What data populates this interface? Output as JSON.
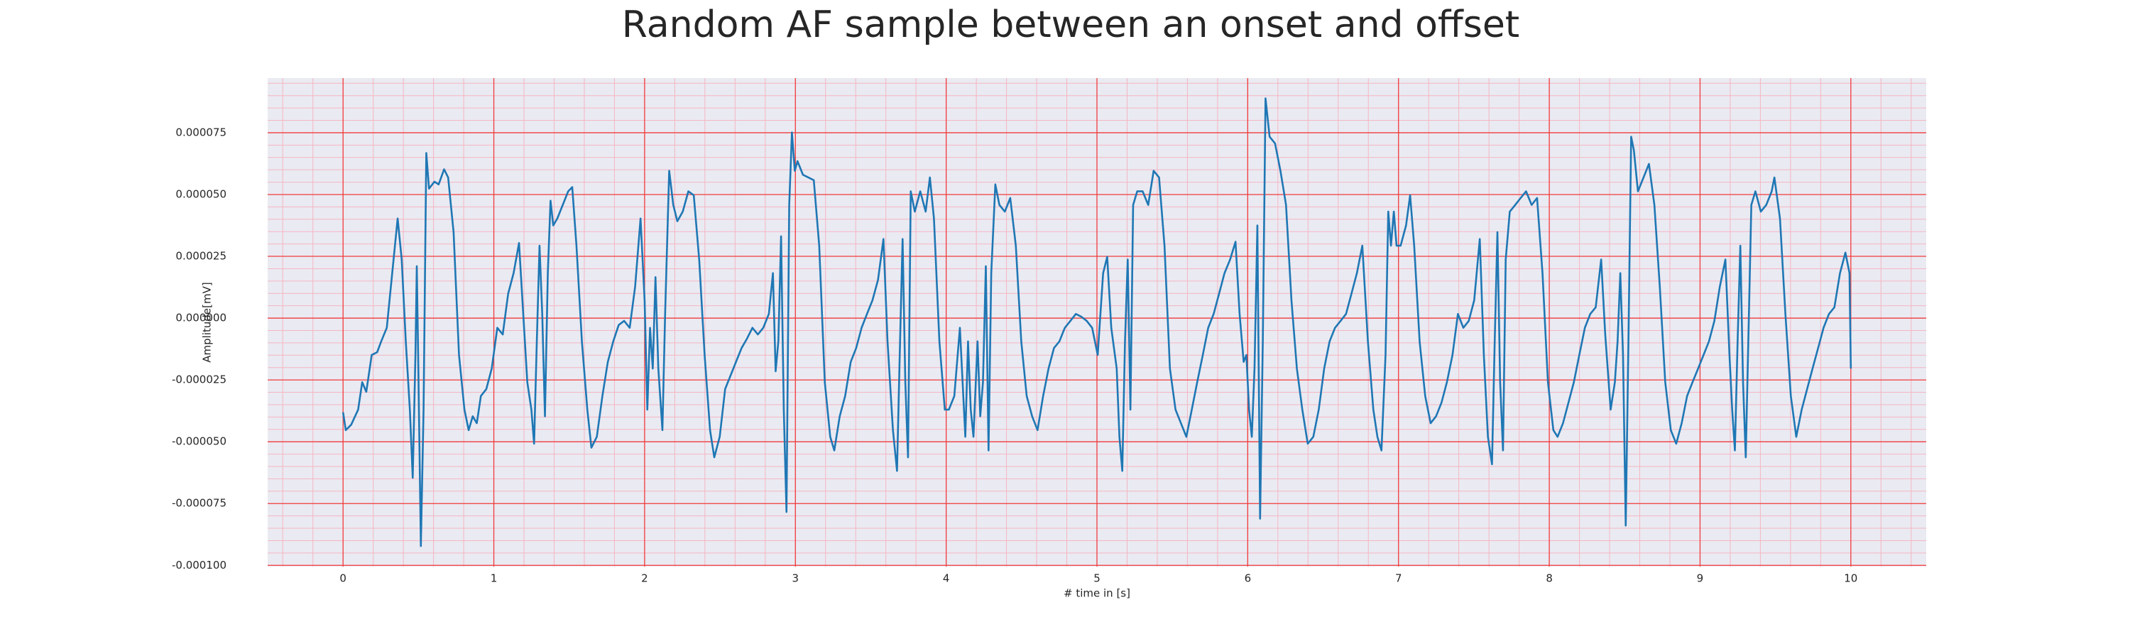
{
  "chart_data": {
    "type": "line",
    "title": "Random AF sample between an onset and offset",
    "xlabel": "# time in [s]",
    "ylabel": "Amplitude[mV]",
    "color": "#1f77b4",
    "grid": true,
    "minor_grid": true,
    "xlim": [
      -0.5,
      10.5
    ],
    "xticks": [
      0,
      1,
      2,
      3,
      4,
      5,
      6,
      7,
      8,
      9,
      10
    ],
    "ylim": [
      -0.0001005,
      9.71e-05
    ],
    "yticks": [
      {
        "value": -0.0001,
        "label": "-0.000100"
      },
      {
        "value": -7.5e-05,
        "label": "-0.000075"
      },
      {
        "value": -5e-05,
        "label": "-0.000050"
      },
      {
        "value": -2.5e-05,
        "label": "-0.000025"
      },
      {
        "value": 0,
        "label": "0.000000"
      },
      {
        "value": 2.5e-05,
        "label": "0.000025"
      },
      {
        "value": 5e-05,
        "label": "0.000050"
      },
      {
        "value": 7.5e-05,
        "label": "0.000075"
      }
    ],
    "x": [
      0,
      0.018,
      0.054,
      0.1,
      0.127,
      0.154,
      0.19,
      0.226,
      0.253,
      0.29,
      0.326,
      0.362,
      0.389,
      0.416,
      0.443,
      0.462,
      0.48,
      0.489,
      0.498,
      0.516,
      0.534,
      0.552,
      0.57,
      0.606,
      0.634,
      0.67,
      0.697,
      0.733,
      0.769,
      0.805,
      0.833,
      0.86,
      0.887,
      0.914,
      0.95,
      0.986,
      1.023,
      1.059,
      1.095,
      1.131,
      1.167,
      1.195,
      1.222,
      1.249,
      1.267,
      1.285,
      1.303,
      1.321,
      1.339,
      1.358,
      1.376,
      1.394,
      1.421,
      1.457,
      1.493,
      1.52,
      1.548,
      1.584,
      1.62,
      1.647,
      1.683,
      1.72,
      1.756,
      1.792,
      1.828,
      1.864,
      1.901,
      1.937,
      1.973,
      2.0,
      2.018,
      2.036,
      2.054,
      2.072,
      2.091,
      2.118,
      2.136,
      2.163,
      2.19,
      2.217,
      2.253,
      2.29,
      2.326,
      2.362,
      2.398,
      2.434,
      2.462,
      2.498,
      2.534,
      2.57,
      2.606,
      2.643,
      2.679,
      2.715,
      2.751,
      2.787,
      2.824,
      2.851,
      2.869,
      2.887,
      2.905,
      2.923,
      2.941,
      2.959,
      2.977,
      2.996,
      3.014,
      3.05,
      3.086,
      3.122,
      3.158,
      3.195,
      3.231,
      3.258,
      3.294,
      3.33,
      3.367,
      3.403,
      3.439,
      3.475,
      3.511,
      3.548,
      3.584,
      3.611,
      3.647,
      3.674,
      3.692,
      3.711,
      3.729,
      3.747,
      3.765,
      3.792,
      3.828,
      3.864,
      3.892,
      3.919,
      3.955,
      3.991,
      4.018,
      4.054,
      4.091,
      4.109,
      4.127,
      4.145,
      4.163,
      4.181,
      4.208,
      4.226,
      4.244,
      4.263,
      4.281,
      4.299,
      4.326,
      4.353,
      4.389,
      4.425,
      4.462,
      4.498,
      4.534,
      4.57,
      4.606,
      4.643,
      4.679,
      4.715,
      4.751,
      4.787,
      4.824,
      4.86,
      4.896,
      4.932,
      4.968,
      5.005,
      5.041,
      5.068,
      5.095,
      5.131,
      5.149,
      5.168,
      5.186,
      5.204,
      5.222,
      5.24,
      5.267,
      5.303,
      5.34,
      5.376,
      5.412,
      5.448,
      5.484,
      5.521,
      5.557,
      5.593,
      5.629,
      5.665,
      5.702,
      5.738,
      5.774,
      5.81,
      5.846,
      5.883,
      5.919,
      5.946,
      5.973,
      5.991,
      6.009,
      6.027,
      6.045,
      6.064,
      6.082,
      6.1,
      6.118,
      6.145,
      6.181,
      6.217,
      6.254,
      6.29,
      6.326,
      6.362,
      6.398,
      6.435,
      6.471,
      6.507,
      6.543,
      6.579,
      6.616,
      6.652,
      6.688,
      6.724,
      6.76,
      6.797,
      6.833,
      6.86,
      6.887,
      6.914,
      6.932,
      6.95,
      6.969,
      6.987,
      7.014,
      7.05,
      7.077,
      7.104,
      7.14,
      7.177,
      7.213,
      7.249,
      7.285,
      7.321,
      7.358,
      7.394,
      7.43,
      7.466,
      7.502,
      7.539,
      7.566,
      7.593,
      7.62,
      7.638,
      7.656,
      7.674,
      7.693,
      7.711,
      7.738,
      7.774,
      7.81,
      7.846,
      7.883,
      7.919,
      7.955,
      7.991,
      8.027,
      8.055,
      8.091,
      8.127,
      8.163,
      8.199,
      8.236,
      8.272,
      8.308,
      8.344,
      8.371,
      8.407,
      8.435,
      8.453,
      8.471,
      8.489,
      8.507,
      8.525,
      8.543,
      8.561,
      8.588,
      8.625,
      8.661,
      8.697,
      8.733,
      8.769,
      8.806,
      8.842,
      8.878,
      8.914,
      8.95,
      8.987,
      9.023,
      9.059,
      9.095,
      9.131,
      9.168,
      9.195,
      9.213,
      9.231,
      9.249,
      9.267,
      9.285,
      9.303,
      9.322,
      9.34,
      9.367,
      9.403,
      9.439,
      9.475,
      9.493,
      9.53,
      9.566,
      9.602,
      9.638,
      9.674,
      9.71,
      9.746,
      9.783,
      9.819,
      9.855,
      9.891,
      9.928,
      9.964,
      9.991,
      10.0
    ],
    "values": [
      -3.81e-05,
      -4.53e-05,
      -4.31e-05,
      -3.7e-05,
      -2.59e-05,
      -2.98e-05,
      -1.49e-05,
      -1.38e-05,
      -9.4e-06,
      -3.9e-06,
      1.82e-05,
      4.03e-05,
      2.37e-05,
      -9.4e-06,
      -3.7e-05,
      -6.46e-05,
      -1.49e-05,
      2.1e-05,
      -1.49e-05,
      -9.22e-05,
      -3.7e-05,
      6.68e-05,
      5.24e-05,
      5.52e-05,
      5.41e-05,
      6.02e-05,
      5.69e-05,
      3.48e-05,
      -1.49e-05,
      -3.7e-05,
      -4.53e-05,
      -3.97e-05,
      -4.25e-05,
      -3.15e-05,
      -2.87e-05,
      -2.04e-05,
      -3.9e-06,
      -6.6e-06,
      9.9e-06,
      1.82e-05,
      3.04e-05,
      1.7e-06,
      -2.59e-05,
      -3.7e-05,
      -5.08e-05,
      -9.4e-06,
      2.93e-05,
      1.7e-06,
      -3.97e-05,
      1.82e-05,
      4.75e-05,
      3.75e-05,
      4.03e-05,
      4.58e-05,
      5.13e-05,
      5.3e-05,
      2.93e-05,
      -9.4e-06,
      -3.7e-05,
      -5.24e-05,
      -4.8e-05,
      -3.15e-05,
      -1.77e-05,
      -9.4e-06,
      -2.8e-06,
      -1.1e-06,
      -3.9e-06,
      1.27e-05,
      4.03e-05,
      7.2e-06,
      -3.7e-05,
      -3.9e-06,
      -2.04e-05,
      1.66e-05,
      -2.04e-05,
      -4.53e-05,
      1.7e-06,
      5.96e-05,
      4.58e-05,
      3.92e-05,
      4.31e-05,
      5.13e-05,
      4.97e-05,
      2.37e-05,
      -1.49e-05,
      -4.53e-05,
      -5.63e-05,
      -4.8e-05,
      -2.87e-05,
      -2.32e-05,
      -1.77e-05,
      -1.21e-05,
      -8.3e-06,
      -3.9e-06,
      -6.6e-06,
      -3.9e-06,
      1.7e-06,
      1.82e-05,
      -2.15e-05,
      -9.4e-06,
      3.31e-05,
      -3.7e-05,
      -7.84e-05,
      4.58e-05,
      7.51e-05,
      5.96e-05,
      6.35e-05,
      5.8e-05,
      5.69e-05,
      5.58e-05,
      2.93e-05,
      -2.59e-05,
      -4.8e-05,
      -5.35e-05,
      -3.97e-05,
      -3.15e-05,
      -1.77e-05,
      -1.21e-05,
      -3.9e-06,
      1.7e-06,
      7.2e-06,
      1.55e-05,
      3.2e-05,
      -9.4e-06,
      -4.53e-05,
      -6.18e-05,
      -1.49e-05,
      3.2e-05,
      -2.59e-05,
      -5.63e-05,
      5.13e-05,
      4.31e-05,
      5.13e-05,
      4.31e-05,
      5.69e-05,
      4.03e-05,
      -9.4e-06,
      -3.7e-05,
      -3.7e-05,
      -3.15e-05,
      -3.9e-06,
      -2.59e-05,
      -4.8e-05,
      -9.4e-06,
      -3.7e-05,
      -4.8e-05,
      -9.4e-06,
      -3.97e-05,
      -2.59e-05,
      2.1e-05,
      -5.35e-05,
      1.82e-05,
      5.41e-05,
      4.58e-05,
      4.31e-05,
      4.86e-05,
      2.93e-05,
      -9.4e-06,
      -3.15e-05,
      -3.97e-05,
      -4.53e-05,
      -3.15e-05,
      -2.04e-05,
      -1.21e-05,
      -9.4e-06,
      -3.9e-06,
      -1.1e-06,
      1.7e-06,
      6e-07,
      -1.1e-06,
      -3.9e-06,
      -1.49e-05,
      1.82e-05,
      2.48e-05,
      -3.9e-06,
      -2.04e-05,
      -4.8e-05,
      -6.18e-05,
      -9.4e-06,
      2.37e-05,
      -3.7e-05,
      4.58e-05,
      5.13e-05,
      5.13e-05,
      4.58e-05,
      5.96e-05,
      5.69e-05,
      2.93e-05,
      -2.04e-05,
      -3.7e-05,
      -4.25e-05,
      -4.8e-05,
      -3.7e-05,
      -2.59e-05,
      -1.49e-05,
      -3.9e-06,
      1.7e-06,
      9.9e-06,
      1.82e-05,
      2.37e-05,
      3.09e-05,
      1.7e-06,
      -1.77e-05,
      -1.49e-05,
      -3.7e-05,
      -4.8e-05,
      -2.04e-05,
      3.75e-05,
      -8.11e-05,
      -9.4e-06,
      8.89e-05,
      7.34e-05,
      7.07e-05,
      5.96e-05,
      4.58e-05,
      7.2e-06,
      -2.04e-05,
      -3.7e-05,
      -5.08e-05,
      -4.8e-05,
      -3.7e-05,
      -2.04e-05,
      -9.4e-06,
      -3.9e-06,
      -1.1e-06,
      1.7e-06,
      9.9e-06,
      1.82e-05,
      2.93e-05,
      -9.4e-06,
      -3.7e-05,
      -4.8e-05,
      -5.35e-05,
      -1.49e-05,
      4.31e-05,
      2.93e-05,
      4.31e-05,
      2.93e-05,
      2.93e-05,
      3.75e-05,
      4.97e-05,
      2.93e-05,
      -9.4e-06,
      -3.15e-05,
      -4.25e-05,
      -3.97e-05,
      -3.42e-05,
      -2.59e-05,
      -1.49e-05,
      1.7e-06,
      -3.9e-06,
      -1.1e-06,
      7.2e-06,
      3.2e-05,
      -1.49e-05,
      -4.8e-05,
      -5.91e-05,
      -9.4e-06,
      3.48e-05,
      -2.59e-05,
      -5.35e-05,
      2.37e-05,
      4.31e-05,
      4.58e-05,
      4.86e-05,
      5.13e-05,
      4.58e-05,
      4.86e-05,
      1.82e-05,
      -2.59e-05,
      -4.53e-05,
      -4.8e-05,
      -4.25e-05,
      -3.42e-05,
      -2.59e-05,
      -1.49e-05,
      -3.9e-06,
      1.7e-06,
      4.4e-06,
      2.37e-05,
      -6.6e-06,
      -3.7e-05,
      -2.59e-05,
      -9.4e-06,
      1.82e-05,
      -1.49e-05,
      -8.39e-05,
      -9.4e-06,
      7.34e-05,
      6.79e-05,
      5.13e-05,
      5.69e-05,
      6.24e-05,
      4.58e-05,
      1.27e-05,
      -2.59e-05,
      -4.53e-05,
      -5.08e-05,
      -4.25e-05,
      -3.15e-05,
      -2.59e-05,
      -2.04e-05,
      -1.49e-05,
      -9.4e-06,
      -1.1e-06,
      1.27e-05,
      2.37e-05,
      -1.49e-05,
      -3.7e-05,
      -5.35e-05,
      -9.4e-06,
      2.93e-05,
      -2.59e-05,
      -5.63e-05,
      -3.9e-06,
      4.58e-05,
      5.13e-05,
      4.31e-05,
      4.58e-05,
      5.13e-05,
      5.69e-05,
      4.03e-05,
      1.7e-06,
      -3.15e-05,
      -4.8e-05,
      -3.7e-05,
      -2.87e-05,
      -2.04e-05,
      -1.21e-05,
      -3.9e-06,
      1.7e-06,
      4.4e-06,
      1.82e-05,
      2.65e-05,
      1.82e-05,
      -2.04e-05
    ]
  }
}
